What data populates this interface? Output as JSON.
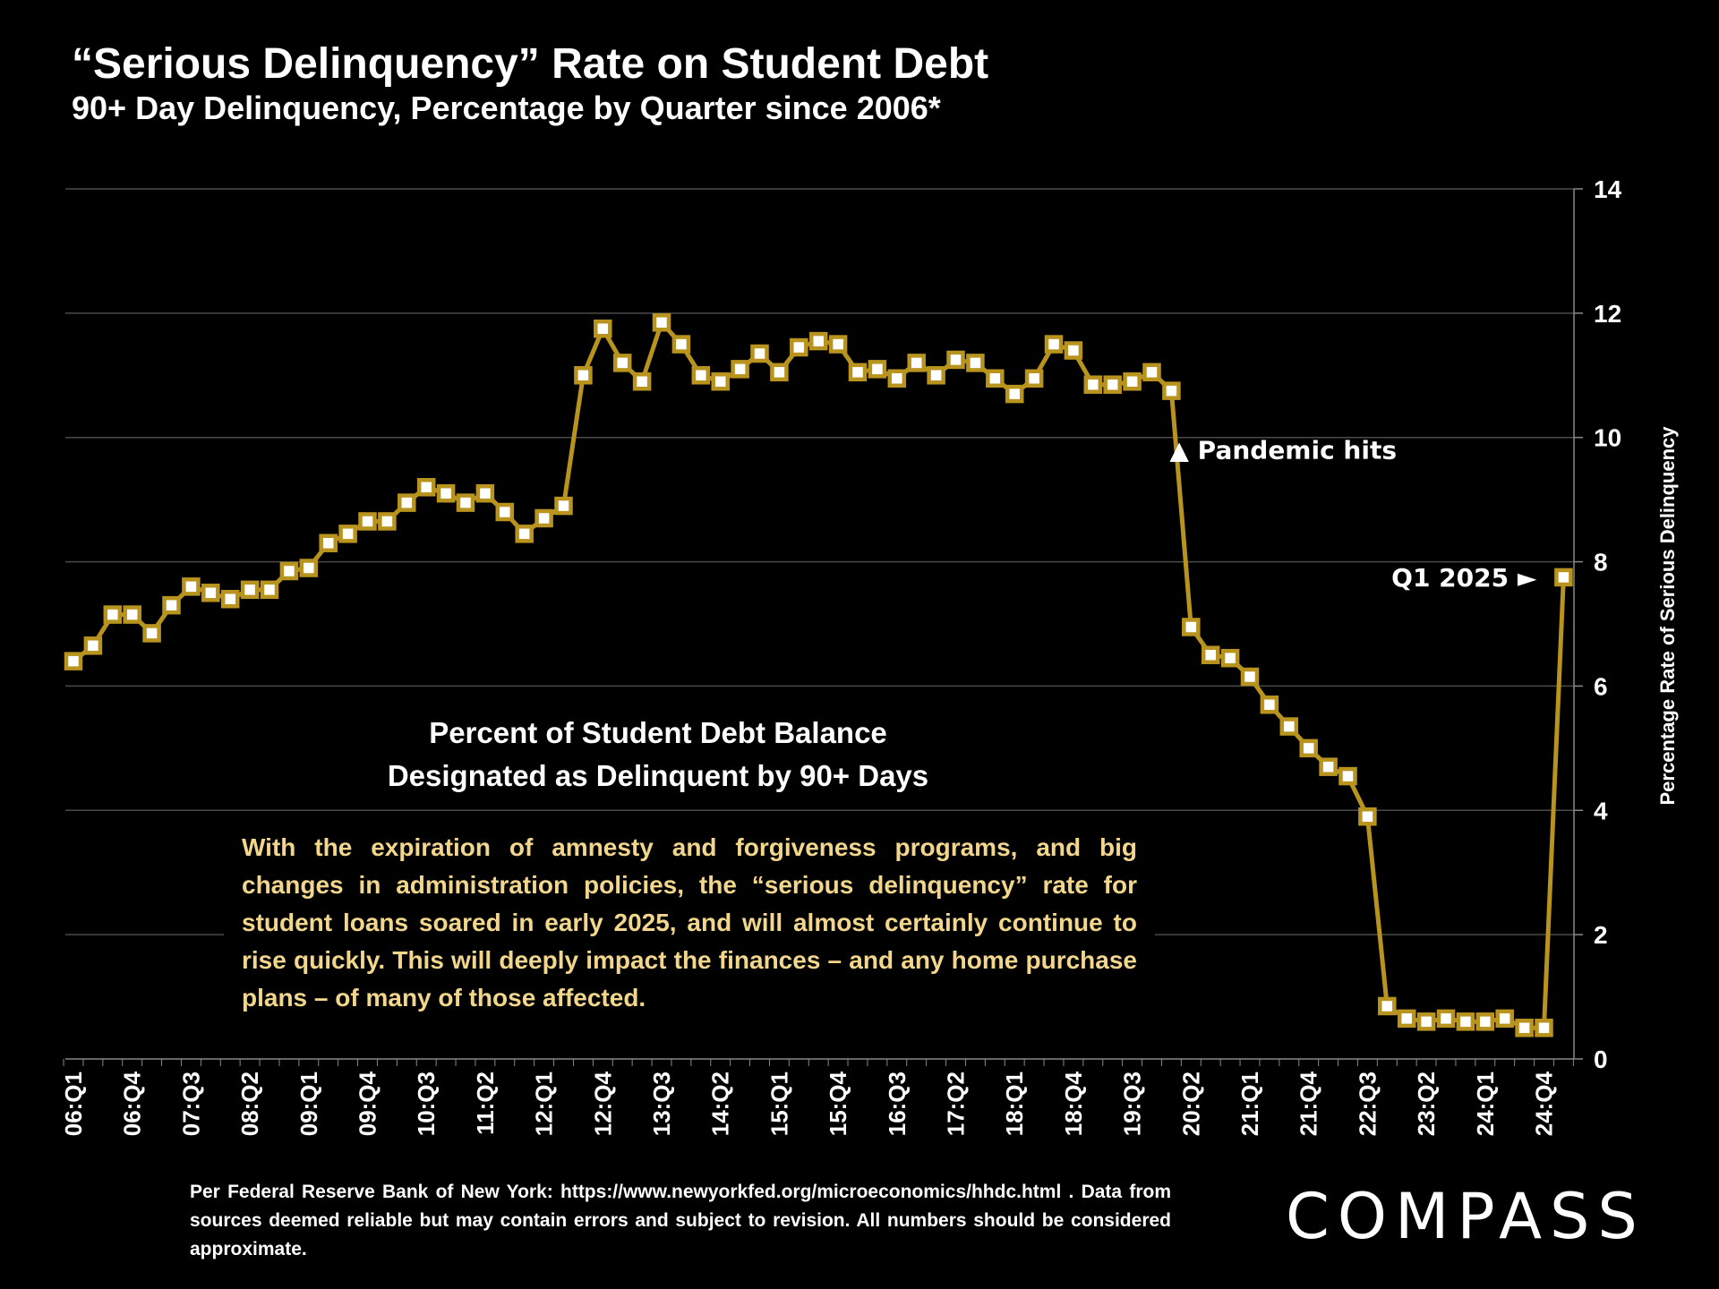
{
  "title": "“Serious Delinquency” Rate on Student Debt",
  "subtitle": "90+ Day Delinquency, Percentage by Quarter since 2006*",
  "note": {
    "heading_line1": "Percent of Student Debt Balance",
    "heading_line2": "Designated as Delinquent by 90+ Days",
    "body": "With the expiration of amnesty and forgiveness programs, and big changes in administration policies, the “serious delinquency” rate for student loans soared in early 2025, and will almost certainly continue to rise quickly. This will deeply impact the finances – and any home purchase plans – of many of those affected."
  },
  "footer": "Per Federal Reserve Bank of New York: https://www.newyorkfed.org/microeconomics/hhdc.html . Data from sources deemed reliable but may contain errors and subject to revision. All numbers should be considered approximate.",
  "logo": "COMPASS",
  "colors": {
    "line": "#b8941f",
    "marker_fill": "#ffffff",
    "note_text": "#f2d68b",
    "grid": "#4a4a4a"
  },
  "chart_data": {
    "type": "line",
    "title": "“Serious Delinquency” Rate on Student Debt",
    "ylabel": "Percentage Rate of Serious Delinquency",
    "xlabel": "",
    "ylim": [
      0,
      14
    ],
    "yticks": [
      0,
      2,
      4,
      6,
      8,
      10,
      12,
      14
    ],
    "y_axis_side": "right",
    "grid": true,
    "x_tick_labels": [
      "06:Q1",
      "06:Q4",
      "07:Q3",
      "08:Q2",
      "09:Q1",
      "09:Q4",
      "10:Q3",
      "11:Q2",
      "12:Q1",
      "12:Q4",
      "13:Q3",
      "14:Q2",
      "15:Q1",
      "15:Q4",
      "16:Q3",
      "17:Q2",
      "18:Q1",
      "18:Q4",
      "19:Q3",
      "20:Q2",
      "21:Q1",
      "21:Q4",
      "22:Q3",
      "23:Q2",
      "24:Q1",
      "24:Q4"
    ],
    "x_tick_every": 3,
    "series": [
      {
        "name": "Percent of Student Debt Balance 90+ Days Delinquent",
        "start": "06:Q1",
        "values": [
          6.4,
          6.65,
          7.15,
          7.15,
          6.85,
          7.3,
          7.6,
          7.5,
          7.4,
          7.55,
          7.55,
          7.85,
          7.9,
          8.3,
          8.45,
          8.65,
          8.65,
          8.95,
          9.2,
          9.1,
          8.95,
          9.1,
          8.8,
          8.45,
          8.7,
          8.9,
          11.0,
          11.75,
          11.2,
          10.9,
          11.85,
          11.5,
          11.0,
          10.9,
          11.1,
          11.35,
          11.05,
          11.45,
          11.55,
          11.5,
          11.05,
          11.1,
          10.95,
          11.2,
          11.0,
          11.25,
          11.2,
          10.95,
          10.7,
          10.95,
          11.5,
          11.4,
          10.85,
          10.85,
          10.9,
          11.05,
          10.75,
          6.95,
          6.5,
          6.45,
          6.15,
          5.7,
          5.35,
          5.0,
          4.7,
          4.55,
          3.9,
          0.85,
          0.65,
          0.6,
          0.65,
          0.6,
          0.6,
          0.65,
          0.5,
          0.5,
          7.75
        ]
      }
    ],
    "annotations": [
      {
        "text": "Pandemic hits",
        "at": "20:Q1",
        "symbol": "▲"
      },
      {
        "text": "Q1 2025",
        "at": "25:Q1",
        "symbol": "►"
      }
    ]
  }
}
